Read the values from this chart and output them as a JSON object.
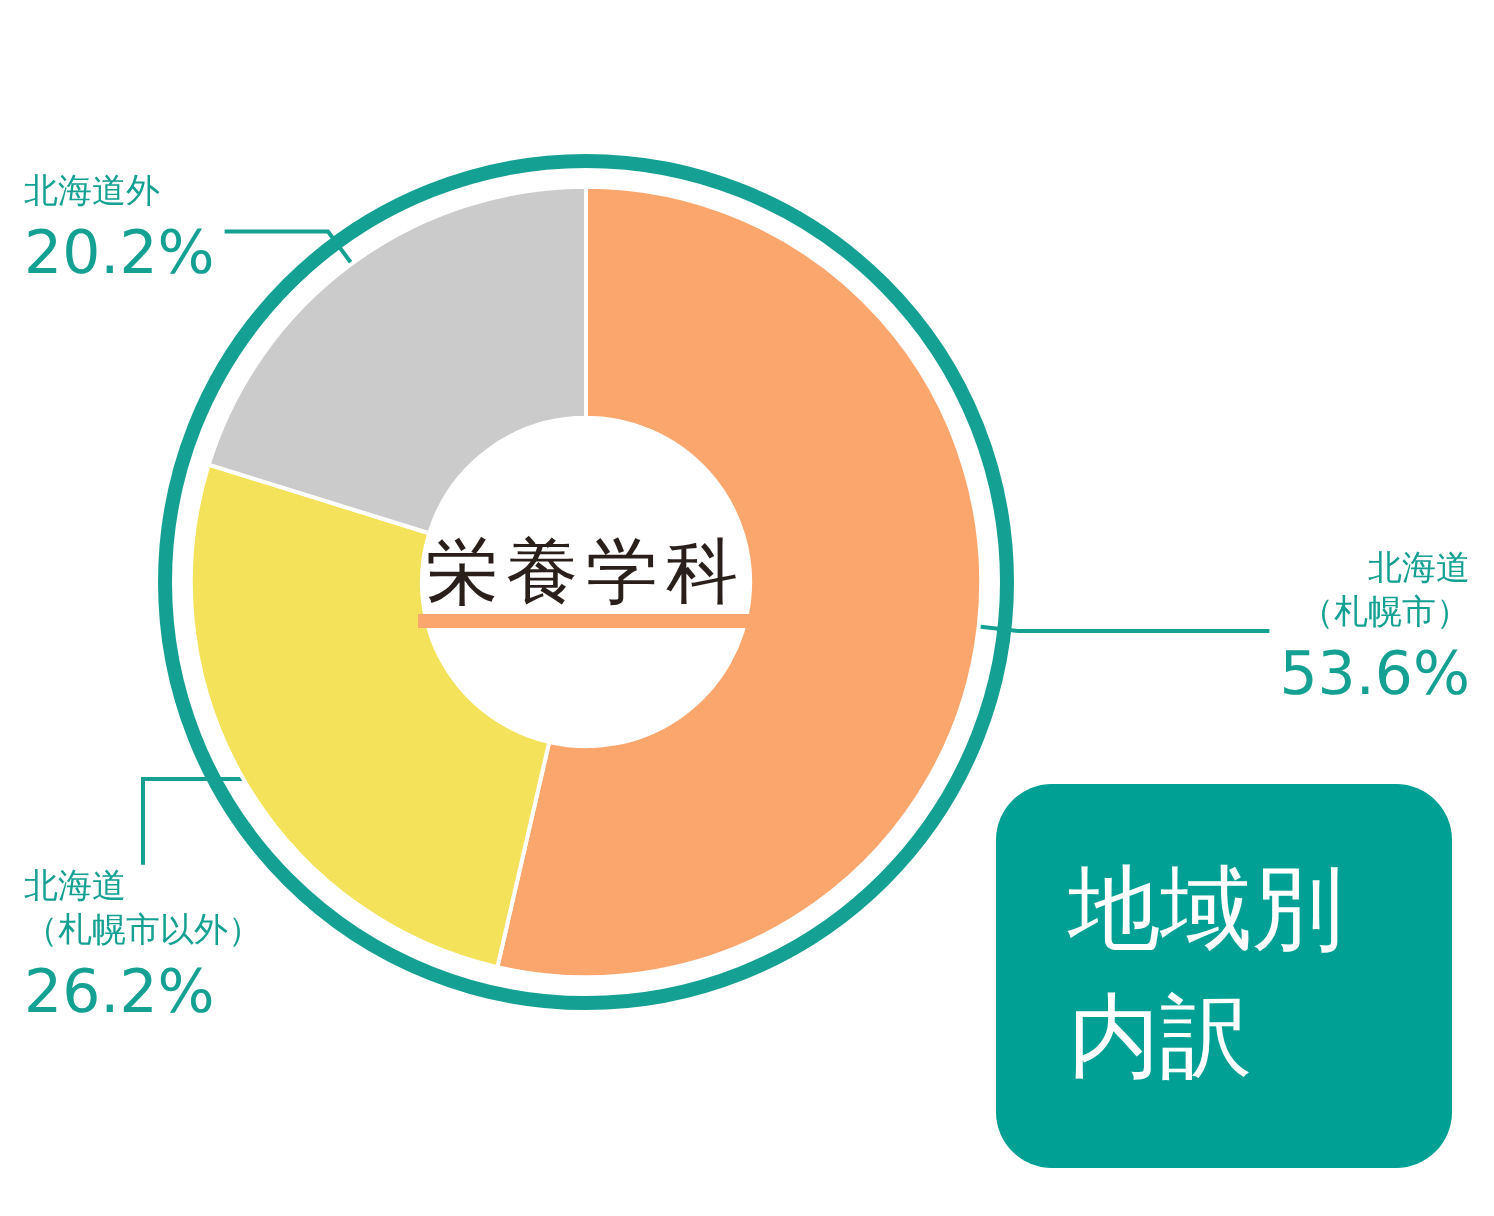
{
  "chart_data": {
    "type": "donut",
    "title": "栄養学科",
    "categories": [
      "北海道（札幌市）",
      "北海道（札幌市以外）",
      "北海道外"
    ],
    "values": [
      53.6,
      26.2,
      20.2
    ],
    "colors": [
      "#fba66c",
      "#f4e25a",
      "#cacbca"
    ],
    "value_labels": [
      "53.6%",
      "26.2%",
      "20.2%"
    ],
    "annotations": [
      "地域別内訳"
    ],
    "legend": false
  }
}
